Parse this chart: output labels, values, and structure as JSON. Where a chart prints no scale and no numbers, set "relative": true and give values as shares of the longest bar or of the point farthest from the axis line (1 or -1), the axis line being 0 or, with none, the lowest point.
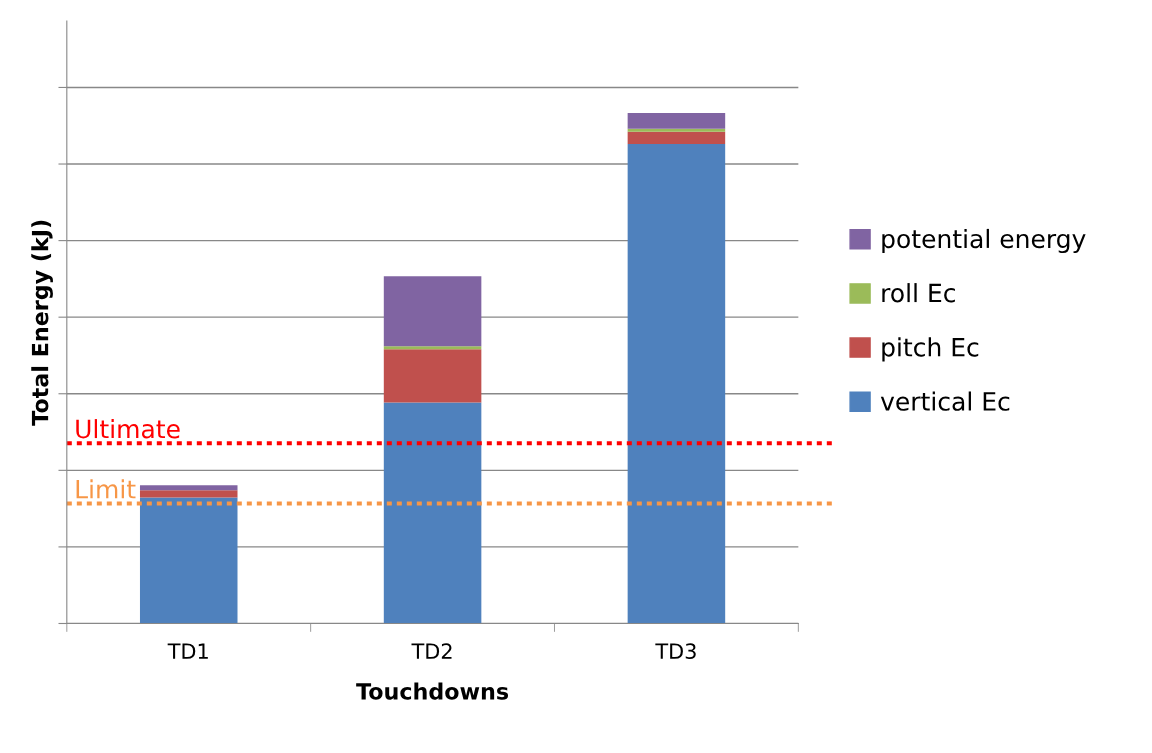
{
  "chart_data": {
    "type": "bar",
    "stacked": true,
    "relative": true,
    "xlabel": "Touchdowns",
    "ylabel": "Total Energy (kJ)",
    "categories": [
      "TD1",
      "TD2",
      "TD3"
    ],
    "series": [
      {
        "name": "vertical Ec",
        "color": "#4f81bd",
        "values": [
          0.247,
          0.433,
          0.939
        ]
      },
      {
        "name": "pitch Ec",
        "color": "#c0504d",
        "values": [
          0.014,
          0.104,
          0.024
        ]
      },
      {
        "name": "roll Ec",
        "color": "#9bbb59",
        "values": [
          0,
          0.006,
          0.006
        ]
      },
      {
        "name": "potential energy",
        "color": "#8064a2",
        "values": [
          0.01,
          0.137,
          0.031
        ]
      }
    ],
    "ref_lines": [
      {
        "axis": "y",
        "value": 0.353,
        "label": "Ultimate",
        "color": "#ff0000",
        "line_style": "dotted"
      },
      {
        "axis": "y",
        "value": 0.235,
        "label": "Limit",
        "color": "#f79646",
        "line_style": "dotted"
      }
    ],
    "grid": "y",
    "legend": "right"
  }
}
